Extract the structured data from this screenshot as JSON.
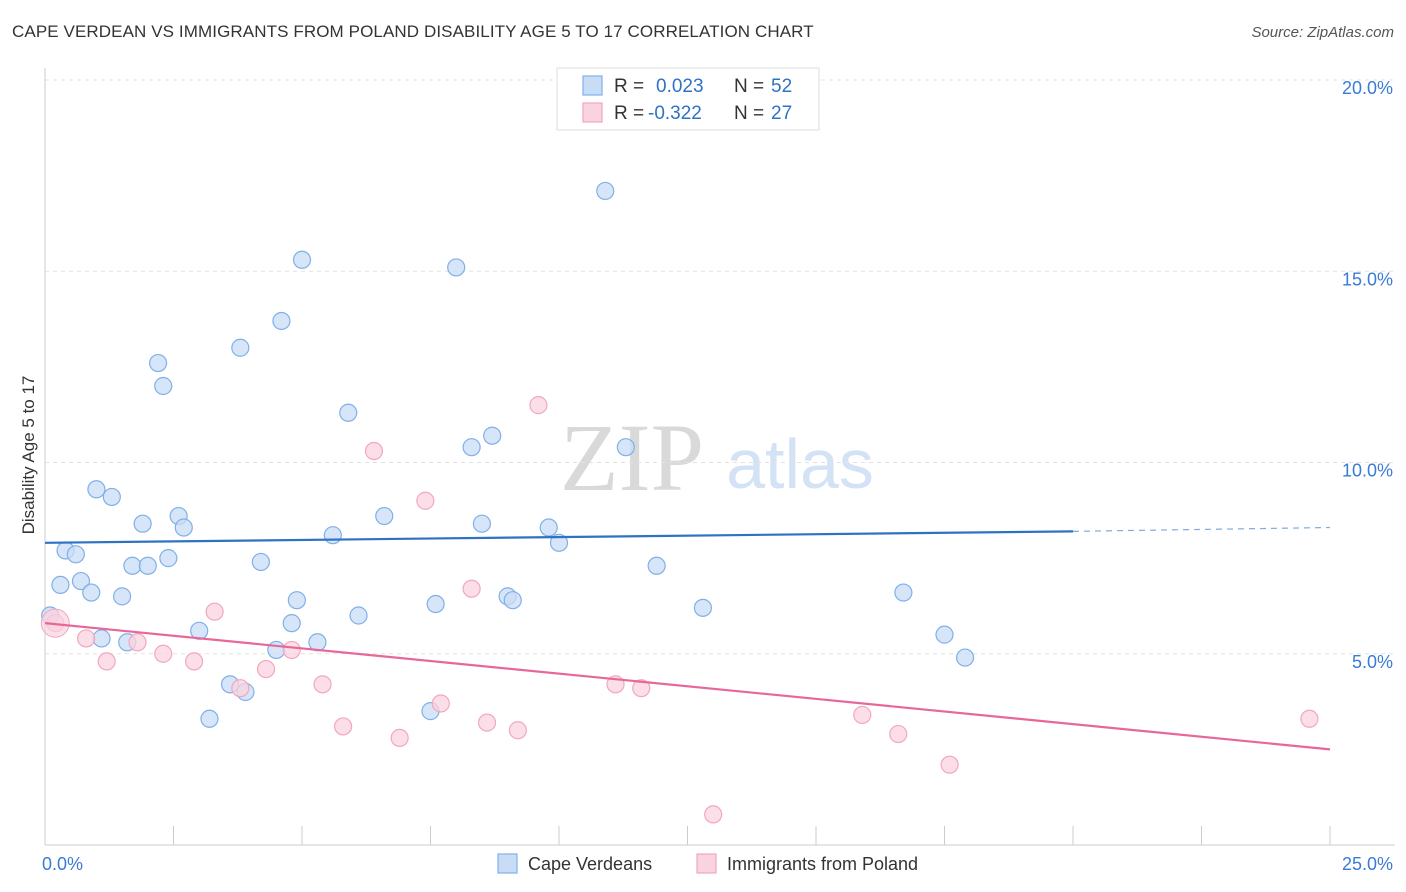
{
  "title": "CAPE VERDEAN VS IMMIGRANTS FROM POLAND DISABILITY AGE 5 TO 17 CORRELATION CHART",
  "source": "Source: ZipAtlas.com",
  "watermark": {
    "zip": "ZIP",
    "atlas": "atlas"
  },
  "chart_data": {
    "type": "scatter",
    "title": "CAPE VERDEAN VS IMMIGRANTS FROM POLAND DISABILITY AGE 5 TO 17 CORRELATION CHART",
    "xlabel": "",
    "ylabel": "Disability Age 5 to 17",
    "xlim": [
      0,
      25
    ],
    "ylim": [
      0,
      20
    ],
    "x_tick_labels": [
      "0.0%",
      "25.0%"
    ],
    "y_ticks": [
      5,
      10,
      15,
      20
    ],
    "y_tick_labels": [
      "5.0%",
      "10.0%",
      "15.0%",
      "20.0%"
    ],
    "grid": "horizontal dashed",
    "legend_position": "bottom",
    "stats_box_position": "top-center",
    "series": [
      {
        "name": "Cape Verdeans",
        "color": "#7fb0e8",
        "fill": "#c9dcf5",
        "line_color": "#2f72c4",
        "r_label": "R =",
        "r_value": "0.023",
        "n_label": "N =",
        "n_value": "52",
        "trend": {
          "x_start": 0,
          "y_start": 7.9,
          "x_end": 20,
          "y_end": 8.2,
          "dash_to_x": 25,
          "dash_to_y": 8.3
        },
        "points": [
          [
            0.1,
            6.0
          ],
          [
            0.3,
            6.8
          ],
          [
            0.4,
            7.7
          ],
          [
            0.6,
            7.6
          ],
          [
            0.7,
            6.9
          ],
          [
            0.9,
            6.6
          ],
          [
            1.0,
            9.3
          ],
          [
            1.1,
            5.4
          ],
          [
            1.3,
            9.1
          ],
          [
            1.5,
            6.5
          ],
          [
            1.6,
            5.3
          ],
          [
            1.7,
            7.3
          ],
          [
            1.9,
            8.4
          ],
          [
            2.0,
            7.3
          ],
          [
            2.2,
            12.6
          ],
          [
            2.3,
            12.0
          ],
          [
            2.4,
            7.5
          ],
          [
            2.6,
            8.6
          ],
          [
            2.7,
            8.3
          ],
          [
            3.0,
            5.6
          ],
          [
            3.2,
            3.3
          ],
          [
            3.6,
            4.2
          ],
          [
            3.8,
            13.0
          ],
          [
            3.9,
            4.0
          ],
          [
            4.2,
            7.4
          ],
          [
            4.6,
            13.7
          ],
          [
            4.5,
            5.1
          ],
          [
            4.8,
            5.8
          ],
          [
            4.9,
            6.4
          ],
          [
            5.0,
            15.3
          ],
          [
            5.3,
            5.3
          ],
          [
            5.6,
            8.1
          ],
          [
            5.9,
            11.3
          ],
          [
            6.1,
            6.0
          ],
          [
            6.6,
            8.6
          ],
          [
            7.5,
            3.5
          ],
          [
            7.6,
            6.3
          ],
          [
            8.0,
            15.1
          ],
          [
            8.3,
            10.4
          ],
          [
            8.5,
            8.4
          ],
          [
            8.7,
            10.7
          ],
          [
            9.0,
            6.5
          ],
          [
            9.1,
            6.4
          ],
          [
            9.8,
            8.3
          ],
          [
            10.0,
            7.9
          ],
          [
            10.9,
            17.1
          ],
          [
            11.3,
            10.4
          ],
          [
            11.9,
            7.3
          ],
          [
            12.8,
            6.2
          ],
          [
            16.7,
            6.6
          ],
          [
            17.5,
            5.5
          ],
          [
            17.9,
            4.9
          ]
        ]
      },
      {
        "name": "Immigrants from Poland",
        "color": "#f2a7be",
        "fill": "#f9d3df",
        "line_color": "#e8679a",
        "r_label": "R =",
        "r_value": "-0.322",
        "n_label": "N =",
        "n_value": "27",
        "trend": {
          "x_start": 0,
          "y_start": 5.8,
          "x_end": 25,
          "y_end": 2.5
        },
        "points": [
          [
            0.2,
            5.8
          ],
          [
            0.8,
            5.4
          ],
          [
            1.2,
            4.8
          ],
          [
            1.8,
            5.3
          ],
          [
            2.3,
            5.0
          ],
          [
            2.9,
            4.8
          ],
          [
            3.3,
            6.1
          ],
          [
            3.8,
            4.1
          ],
          [
            4.3,
            4.6
          ],
          [
            4.8,
            5.1
          ],
          [
            5.4,
            4.2
          ],
          [
            5.8,
            3.1
          ],
          [
            6.4,
            10.3
          ],
          [
            6.9,
            2.8
          ],
          [
            7.4,
            9.0
          ],
          [
            7.7,
            3.7
          ],
          [
            8.3,
            6.7
          ],
          [
            8.6,
            3.2
          ],
          [
            9.2,
            3.0
          ],
          [
            9.6,
            11.5
          ],
          [
            11.1,
            4.2
          ],
          [
            11.6,
            4.1
          ],
          [
            13.0,
            0.8
          ],
          [
            15.9,
            3.4
          ],
          [
            16.6,
            2.9
          ],
          [
            17.6,
            2.1
          ],
          [
            24.6,
            3.3
          ]
        ]
      }
    ]
  }
}
